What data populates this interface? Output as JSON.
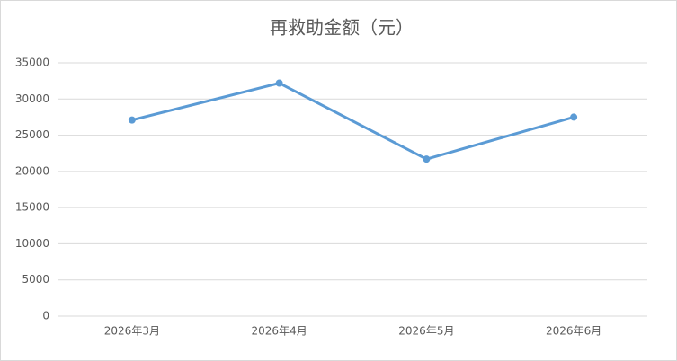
{
  "chart_data": {
    "type": "line",
    "title": "再救助金额（元）",
    "categories": [
      "2026年3月",
      "2026年4月",
      "2026年5月",
      "2026年6月"
    ],
    "series": [
      {
        "name": "再救助金额",
        "color": "#5b9bd5",
        "values": [
          27100,
          32200,
          21700,
          27500
        ]
      }
    ],
    "ylim": [
      0,
      35000
    ],
    "yticks": [
      0,
      5000,
      10000,
      15000,
      20000,
      25000,
      30000,
      35000
    ],
    "grid": true
  }
}
